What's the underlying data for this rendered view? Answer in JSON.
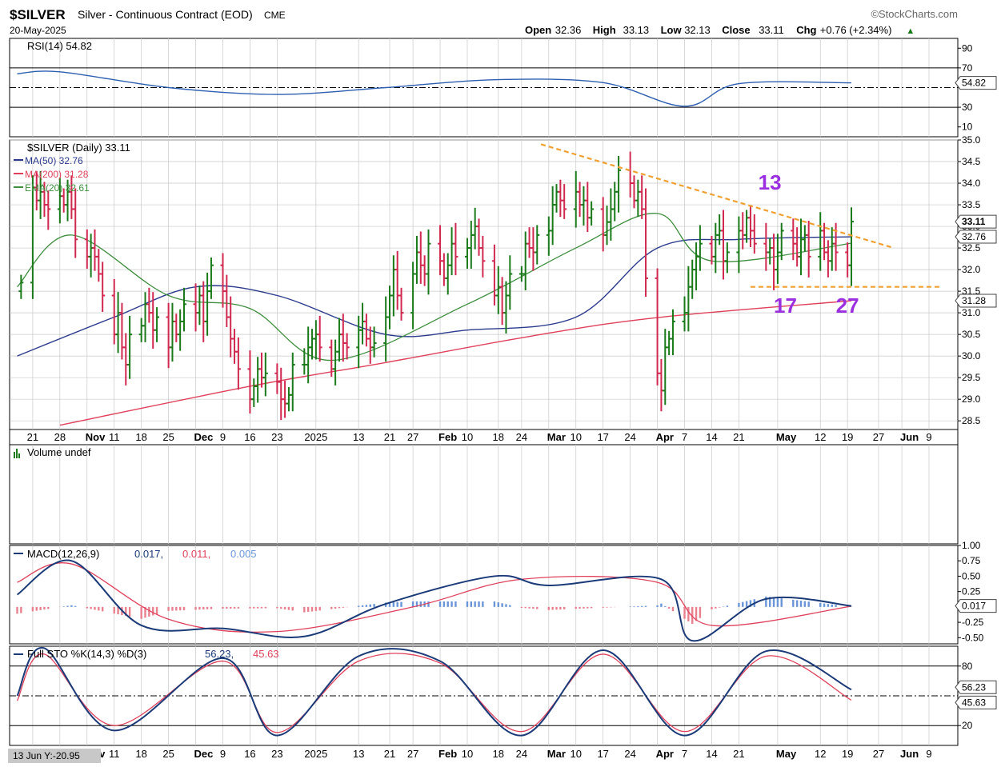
{
  "header": {
    "symbol": "$SILVER",
    "name": "Silver - Continuous Contract (EOD)",
    "exchange": "CME",
    "date": "20-May-2025",
    "brand": "©StockCharts.com",
    "ohlc": [
      {
        "label": "Open",
        "value": "32.36"
      },
      {
        "label": "High",
        "value": "33.13"
      },
      {
        "label": "Low",
        "value": "32.13"
      },
      {
        "label": "Close",
        "value": "33.11"
      },
      {
        "label": "Chg",
        "value": "+0.76 (+2.34%)"
      }
    ],
    "chg_arrow": "▲"
  },
  "colors": {
    "up": "#1a7a1a",
    "down": "#d0284f",
    "ma50": "#2a3a8c",
    "ma200": "#e0405a",
    "ema20": "#3e8e3e",
    "rsi": "#2d5fb0",
    "macd": "#1a3a78",
    "signal": "#e0405a",
    "hist_pos": "#6a96d8",
    "hist_neg": "#e8808e",
    "trend": "#f0a030",
    "annot": "#9b30e0",
    "grid": "#c8c8c8",
    "bg": "#ffffff"
  },
  "x_labels": [
    "21",
    "28",
    "Nov",
    "11",
    "18",
    "25",
    "Dec",
    "9",
    "16",
    "23",
    "2025",
    "13",
    "21",
    "27",
    "Feb",
    "10",
    "18",
    "24",
    "Mar",
    "10",
    "17",
    "24",
    "Apr",
    "7",
    "14",
    "21",
    "May",
    "12",
    "19",
    "27",
    "Jun",
    "9"
  ],
  "x_labels_bottom_prefix": "13 Jun Y:-20.95",
  "rsi_panel": {
    "title": "RSI(14) 54.82",
    "axis_ticks": [
      "90",
      "70",
      "50",
      "30",
      "10"
    ],
    "value_badge": "54.82"
  },
  "price_panel": {
    "title": "$SILVER (Daily) 33.11",
    "legend": [
      {
        "text": "MA(50) 32.76",
        "color": "#2a3a8c"
      },
      {
        "text": "MA(200) 31.28",
        "color": "#e0405a"
      },
      {
        "text": "EMA(20) 32.61",
        "color": "#3e8e3e"
      }
    ],
    "axis_ticks": [
      "35.0",
      "34.5",
      "34.0",
      "33.5",
      "33.0",
      "32.5",
      "32.0",
      "31.5",
      "31.0",
      "30.5",
      "30.0",
      "29.5",
      "29.0",
      "28.5"
    ],
    "badges": [
      {
        "text": "33.11",
        "value": 33.11,
        "bold": true
      },
      {
        "text": "32.76",
        "value": 32.76,
        "bold": false
      },
      {
        "text": "31.28",
        "value": 31.28,
        "bold": false
      }
    ],
    "annotations": [
      "13",
      "17",
      "27"
    ]
  },
  "volume_panel": {
    "title": "Volume undef"
  },
  "macd_panel": {
    "title_prefix": "MACD(12,26,9)",
    "values": [
      "0.017,",
      "0.011,",
      "0.005"
    ],
    "axis_ticks": [
      "1.00",
      "0.75",
      "0.50",
      "0.25",
      "0.00",
      "-0.25",
      "-0.50"
    ],
    "value_badge": "0.017"
  },
  "sto_panel": {
    "title_prefix": "Full STO %K(14,3) %D(3)",
    "values": [
      "56.23,",
      "45.63"
    ],
    "axis_ticks": [
      "80",
      "20"
    ],
    "badges": [
      "56.23",
      "45.63"
    ]
  },
  "chart_data": [
    {
      "type": "ohlc",
      "title": "$SILVER (Daily) 33.11",
      "ylim": [
        28.3,
        35.0
      ],
      "x_range": [
        "2024-10-17",
        "2025-06-12"
      ],
      "series": [
        {
          "name": "$SILVER (Daily) 33.11",
          "closes": [
            31.7,
            33.9,
            33.6,
            33.8,
            33.5,
            33.4,
            33.7,
            33.5,
            33.8,
            33.4,
            32.7,
            32.3,
            32.5,
            32.3,
            31.9,
            31.4,
            30.5,
            31.0,
            30.2,
            29.8,
            30.5,
            30.7,
            31.2,
            31.0,
            30.6,
            30.9,
            30.2,
            30.8,
            30.5,
            30.8,
            31.2,
            31.0,
            31.4,
            30.8,
            31.5,
            32.1,
            31.5,
            30.9,
            30.4,
            30.1,
            29.7,
            29.0,
            29.3,
            29.7,
            29.5,
            29.6,
            29.4,
            29.0,
            28.9,
            29.1,
            29.8,
            29.8,
            30.2,
            30.4,
            30.5,
            30.2,
            29.7,
            30.1,
            30.5,
            30.3,
            30.2,
            30.6,
            30.8,
            30.4,
            30.2,
            30.3,
            30.9,
            31.4,
            32.0,
            31.4,
            31.0,
            31.9,
            32.4,
            32.1,
            31.9,
            32.6,
            32.2,
            31.8,
            32.1,
            32.6,
            32.3,
            32.5,
            32.8,
            33.0,
            32.5,
            32.2,
            31.4,
            31.6,
            31.0,
            31.4,
            31.9,
            31.9,
            32.6,
            32.5,
            32.4,
            32.8,
            32.9,
            33.5,
            33.8,
            33.6,
            33.4,
            33.8,
            33.5,
            33.6,
            33.2,
            33.4,
            32.8,
            33.1,
            33.4,
            33.8,
            34.3,
            34.0,
            33.6,
            33.8,
            33.4,
            31.8,
            29.6,
            29.2,
            30.2,
            30.4,
            30.8,
            31.0,
            31.6,
            32.0,
            32.3,
            32.6,
            32.3,
            32.8,
            32.9,
            32.2,
            32.4,
            32.9,
            32.8,
            33.2,
            32.9,
            32.6,
            32.4,
            32.5,
            32.0,
            32.4,
            32.9,
            32.6,
            32.3,
            32.7,
            32.8,
            32.3,
            32.9,
            32.4,
            32.2,
            32.6,
            32.4,
            32.1,
            33.11
          ]
        },
        {
          "name": "MA(50) 32.76",
          "x": [
            "2024-10-17",
            "2024-11-11",
            "2024-12-02",
            "2024-12-23",
            "2025-01-20",
            "2025-02-10",
            "2025-03-10",
            "2025-03-31",
            "2025-04-21",
            "2025-05-20"
          ],
          "values": [
            30.0,
            30.9,
            31.6,
            31.4,
            30.5,
            30.6,
            30.9,
            32.5,
            32.7,
            32.76
          ]
        },
        {
          "name": "MA(200) 31.28",
          "x": [
            "2024-10-28",
            "2024-12-16",
            "2025-01-20",
            "2025-03-01",
            "2025-04-01",
            "2025-05-20"
          ],
          "values": [
            28.4,
            29.3,
            29.85,
            30.5,
            30.9,
            31.28
          ]
        },
        {
          "name": "EMA(20) 32.61",
          "x": [
            "2024-10-17",
            "2024-10-31",
            "2024-11-25",
            "2024-12-16",
            "2025-01-06",
            "2025-02-10",
            "2025-03-10",
            "2025-03-31",
            "2025-04-14",
            "2025-05-20"
          ],
          "values": [
            31.6,
            32.8,
            31.4,
            31.1,
            29.9,
            31.2,
            32.5,
            33.3,
            32.2,
            32.61
          ]
        }
      ]
    },
    {
      "type": "line",
      "title": "RSI(14) 54.82",
      "ylim": [
        0,
        100
      ],
      "series": [
        {
          "name": "RSI(14) 54.82",
          "x": [
            "2024-10-17",
            "2024-10-28",
            "2024-11-25",
            "2024-12-23",
            "2025-01-20",
            "2025-02-17",
            "2025-03-17",
            "2025-04-07",
            "2025-04-21",
            "2025-05-20"
          ],
          "values": [
            64,
            66,
            50,
            43,
            50,
            58,
            55,
            31,
            54,
            54.82
          ]
        }
      ]
    },
    {
      "type": "line",
      "title": "MACD(12,26,9) 0.017, 0.011, 0.005",
      "ylim": [
        -0.6,
        1.0
      ],
      "series": [
        {
          "name": "0.017,",
          "x": [
            "2024-10-17",
            "2024-10-31",
            "2024-11-18",
            "2024-12-09",
            "2024-12-30",
            "2025-01-20",
            "2025-02-17",
            "2025-03-03",
            "2025-04-01",
            "2025-04-09",
            "2025-04-28",
            "2025-05-20"
          ],
          "values": [
            0.2,
            0.75,
            -0.3,
            -0.35,
            -0.48,
            0.05,
            0.5,
            0.35,
            0.45,
            -0.55,
            0.13,
            0.017
          ]
        },
        {
          "name": "0.011,",
          "x": [
            "2024-10-17",
            "2024-10-31",
            "2024-11-25",
            "2024-12-23",
            "2025-01-27",
            "2025-02-24",
            "2025-03-31",
            "2025-04-14",
            "2025-05-20"
          ],
          "values": [
            0.4,
            0.7,
            -0.2,
            -0.4,
            0.0,
            0.45,
            0.4,
            -0.3,
            0.011
          ]
        }
      ]
    },
    {
      "type": "line",
      "title": "Full STO %K(14,3) %D(3) 56.23, 45.63",
      "ylim": [
        0,
        100
      ],
      "series": [
        {
          "name": "56.23,",
          "x": [
            "2024-10-17",
            "2024-10-24",
            "2024-11-11",
            "2024-12-09",
            "2024-12-23",
            "2025-01-13",
            "2025-02-03",
            "2025-02-24",
            "2025-03-17",
            "2025-04-07",
            "2025-04-28",
            "2025-05-20"
          ],
          "values": [
            50,
            98,
            15,
            88,
            10,
            90,
            85,
            10,
            96,
            10,
            95,
            56.23
          ]
        },
        {
          "name": "45.63",
          "x": [
            "2024-10-17",
            "2024-10-24",
            "2024-11-11",
            "2024-12-09",
            "2024-12-23",
            "2025-01-13",
            "2025-02-03",
            "2025-02-24",
            "2025-03-17",
            "2025-04-07",
            "2025-04-28",
            "2025-05-20"
          ],
          "values": [
            45,
            92,
            20,
            85,
            13,
            85,
            83,
            14,
            92,
            14,
            90,
            45.63
          ]
        }
      ]
    }
  ]
}
